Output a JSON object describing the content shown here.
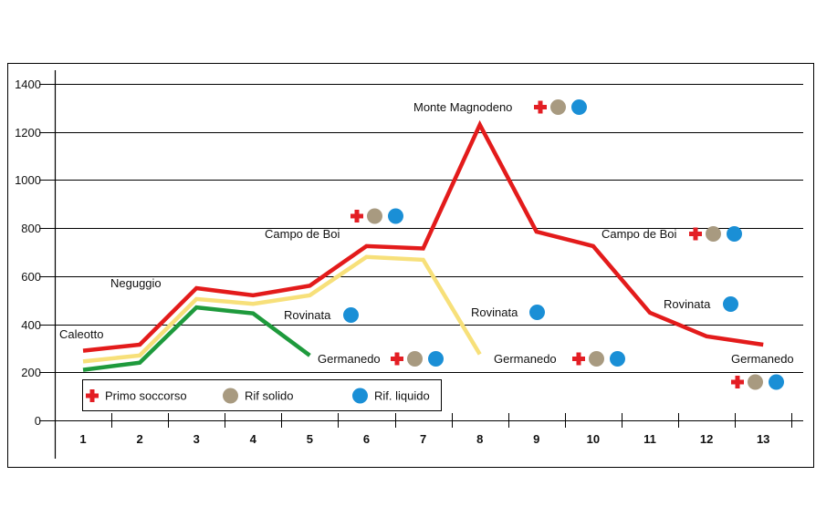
{
  "chart_data": {
    "type": "line",
    "title": "",
    "xlabel": "",
    "ylabel": "",
    "ylim": [
      0,
      1400
    ],
    "yticks": [
      0,
      200,
      400,
      600,
      800,
      1000,
      1200,
      1400
    ],
    "grid": true,
    "categories": [
      "1",
      "2",
      "3",
      "4",
      "5",
      "6",
      "7",
      "8",
      "9",
      "10",
      "11",
      "12",
      "13"
    ],
    "series": [
      {
        "name": "red",
        "color": "#e31b1b",
        "x": [
          1,
          2,
          3,
          4,
          5,
          6,
          7,
          8,
          9,
          10,
          11,
          12,
          13
        ],
        "values": [
          290,
          315,
          550,
          520,
          560,
          725,
          715,
          1230,
          785,
          725,
          448,
          350,
          315
        ]
      },
      {
        "name": "yellow",
        "color": "#f7e07a",
        "x": [
          1,
          2,
          3,
          4,
          5,
          6,
          7,
          8
        ],
        "values": [
          245,
          270,
          505,
          485,
          520,
          680,
          668,
          275
        ]
      },
      {
        "name": "green",
        "color": "#1e9a3c",
        "x": [
          1,
          2,
          3,
          4,
          5
        ],
        "values": [
          210,
          240,
          470,
          445,
          270
        ]
      }
    ],
    "annotations": [
      {
        "label": "Caleotto",
        "x": 1,
        "y": 360,
        "icons": []
      },
      {
        "label": "Neguggio",
        "x": 2,
        "y": 570,
        "icons": []
      },
      {
        "label": "Campo de Boi",
        "x": 5.6,
        "y": 775,
        "icons": []
      },
      {
        "label": "Rovinata",
        "x": 5.6,
        "y": 440,
        "icons": [
          "liquid"
        ]
      },
      {
        "label": "Germanedo",
        "x": 6.2,
        "y": 250,
        "icons": [
          "aid",
          "solid",
          "liquid"
        ]
      },
      {
        "label": "Monte Magnodeno",
        "x": 8.6,
        "y": 1300,
        "icons": [
          "aid",
          "solid",
          "liquid"
        ]
      },
      {
        "label": "Rovinata",
        "x": 8.6,
        "y": 445,
        "icons": [
          "liquid"
        ]
      },
      {
        "label": "Germanedo",
        "x": 9.7,
        "y": 250,
        "icons": [
          "aid",
          "solid",
          "liquid"
        ]
      },
      {
        "label": "Campo de Boi",
        "x": 11.4,
        "y": 760,
        "icons": [
          "aid",
          "solid",
          "liquid"
        ]
      },
      {
        "label": "Rovinata",
        "x": 12,
        "y": 485,
        "icons": [
          "liquid"
        ]
      },
      {
        "label": "Germanedo",
        "x": 13,
        "y": 250,
        "icons": []
      }
    ],
    "floating_icons": [
      {
        "x": 6.4,
        "y": 860,
        "icons": [
          "aid",
          "solid",
          "liquid"
        ]
      },
      {
        "x": 13.3,
        "y": 160,
        "icons": [
          "aid",
          "solid",
          "liquid"
        ]
      }
    ],
    "legend": {
      "position": "bottom-left",
      "items": [
        {
          "key": "aid",
          "label": "Primo soccorso",
          "icon": "red-cross-icon",
          "color": "#e31e24"
        },
        {
          "key": "solid",
          "label": "Rif solido",
          "icon": "tan-circle-icon",
          "color": "#a89a80"
        },
        {
          "key": "liquid",
          "label": "Rif. liquido",
          "icon": "blue-circle-icon",
          "color": "#1a8fd6"
        }
      ]
    }
  }
}
